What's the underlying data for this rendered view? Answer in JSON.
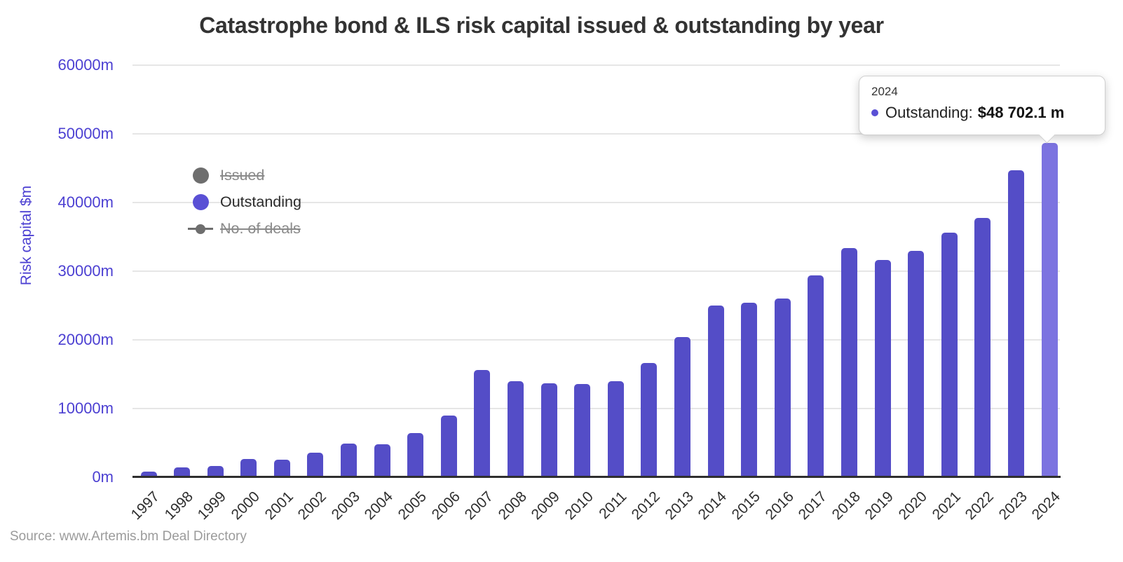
{
  "chart": {
    "title": "Catastrophe bond & ILS risk capital issued & outstanding by year",
    "source": "Source: www.Artemis.bm Deal Directory"
  },
  "legend": {
    "items": [
      {
        "id": "issued",
        "label": "Issued",
        "marker": "circle",
        "color": "#6e6e6e",
        "disabled": true
      },
      {
        "id": "outstanding",
        "label": "Outstanding",
        "marker": "circle",
        "color": "#5A50D5",
        "disabled": false
      },
      {
        "id": "no-of-deals",
        "label": "No. of deals",
        "marker": "line-dot",
        "color": "#6e6e6e",
        "disabled": true
      }
    ]
  },
  "tooltip": {
    "category": "2024",
    "series_label": "Outstanding:",
    "value": "$48 702.1 m",
    "marker_color": "#5A50D5"
  },
  "chart_data": {
    "type": "bar",
    "title": "Catastrophe bond & ILS risk capital issued & outstanding by year",
    "xlabel": "",
    "ylabel": "Risk capital $m",
    "ylim": [
      0,
      60000
    ],
    "grid": true,
    "legend_position": "inside-left",
    "y_ticks": [
      "0m",
      "10000m",
      "20000m",
      "30000m",
      "40000m",
      "50000m",
      "60000m"
    ],
    "y_tick_values": [
      0,
      10000,
      20000,
      30000,
      40000,
      50000,
      60000
    ],
    "categories": [
      "1997",
      "1998",
      "1999",
      "2000",
      "2001",
      "2002",
      "2003",
      "2004",
      "2005",
      "2006",
      "2007",
      "2008",
      "2009",
      "2010",
      "2011",
      "2012",
      "2013",
      "2014",
      "2015",
      "2016",
      "2017",
      "2018",
      "2019",
      "2020",
      "2021",
      "2022",
      "2023",
      "2024"
    ],
    "series": [
      {
        "name": "Issued",
        "type": "bar",
        "visible": false,
        "color": "#6e6e6e",
        "values": []
      },
      {
        "name": "Outstanding",
        "type": "bar",
        "visible": true,
        "color": "#544DC7",
        "values": [
          785.5,
          1414.7,
          1651.5,
          2686.0,
          2594.1,
          3599.4,
          4904.9,
          4829.7,
          6395.5,
          8999.3,
          15587.1,
          14020.9,
          13653.5,
          13621.1,
          13997.9,
          16586.5,
          20438.8,
          24963.7,
          25441.2,
          26004.7,
          29347.5,
          33332.6,
          31663.7,
          32938.5,
          35620.7,
          37728.6,
          44672.9,
          48702.1
        ]
      },
      {
        "name": "No. of deals",
        "type": "line",
        "visible": false,
        "color": "#6e6e6e",
        "values": []
      }
    ],
    "highlight": {
      "category": "2024",
      "bar_color": "#7C73E0"
    }
  }
}
